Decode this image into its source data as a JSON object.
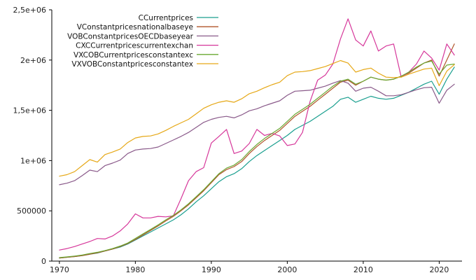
{
  "chart_data": {
    "type": "line",
    "title": "",
    "xlabel": "",
    "ylabel": "",
    "xlim": [
      1969,
      2023
    ],
    "ylim": [
      0,
      2500000
    ],
    "x_ticks": [
      1970,
      1980,
      1990,
      2000,
      2010,
      2020
    ],
    "x_tick_labels": [
      "1970",
      "1980",
      "1990",
      "2000",
      "2010",
      "2020"
    ],
    "y_ticks": [
      0,
      500000,
      1000000,
      1500000,
      2000000,
      2500000
    ],
    "y_tick_labels": [
      "0",
      "500000",
      "1e+06",
      "1,5e+06",
      "2e+06",
      "2,5e+06"
    ],
    "grid": false,
    "legend_position": "top-right",
    "x": [
      1970,
      1971,
      1972,
      1973,
      1974,
      1975,
      1976,
      1977,
      1978,
      1979,
      1980,
      1981,
      1982,
      1983,
      1984,
      1985,
      1986,
      1987,
      1988,
      1989,
      1990,
      1991,
      1992,
      1993,
      1994,
      1995,
      1996,
      1997,
      1998,
      1999,
      2000,
      2001,
      2002,
      2003,
      2004,
      2005,
      2006,
      2007,
      2008,
      2009,
      2010,
      2011,
      2012,
      2013,
      2014,
      2015,
      2016,
      2017,
      2018,
      2019,
      2020,
      2021,
      2022
    ],
    "series": [
      {
        "name": "CCurrentprices",
        "color": "#1a9f8f",
        "values": [
          30000,
          38000,
          45000,
          55000,
          68000,
          80000,
          100000,
          120000,
          140000,
          170000,
          210000,
          250000,
          290000,
          330000,
          370000,
          410000,
          460000,
          520000,
          590000,
          650000,
          720000,
          790000,
          840000,
          870000,
          920000,
          990000,
          1050000,
          1100000,
          1150000,
          1200000,
          1250000,
          1310000,
          1350000,
          1390000,
          1440000,
          1490000,
          1540000,
          1610000,
          1630000,
          1580000,
          1610000,
          1640000,
          1620000,
          1610000,
          1620000,
          1650000,
          1680000,
          1720000,
          1760000,
          1790000,
          1660000,
          1810000,
          1930000
        ]
      },
      {
        "name": "VConstantpricesnationalbaseye",
        "color": "#b0552a",
        "values": [
          30000,
          38000,
          45000,
          55000,
          68000,
          82000,
          100000,
          120000,
          145000,
          175000,
          215000,
          260000,
          305000,
          350000,
          400000,
          445000,
          500000,
          560000,
          630000,
          700000,
          780000,
          860000,
          910000,
          940000,
          990000,
          1070000,
          1140000,
          1200000,
          1250000,
          1300000,
          1370000,
          1440000,
          1490000,
          1540000,
          1600000,
          1660000,
          1720000,
          1780000,
          1800000,
          1750000,
          1790000,
          1830000,
          1810000,
          1800000,
          1810000,
          1840000,
          1870000,
          1920000,
          1970000,
          2000000,
          1840000,
          2000000,
          2160000
        ]
      },
      {
        "name": "VOBConstantpricesOECDbaseyear",
        "color": "#8a5a8a",
        "values": [
          760000,
          775000,
          800000,
          850000,
          905000,
          890000,
          950000,
          975000,
          1005000,
          1070000,
          1105000,
          1115000,
          1120000,
          1135000,
          1170000,
          1205000,
          1240000,
          1280000,
          1330000,
          1380000,
          1410000,
          1430000,
          1440000,
          1425000,
          1455000,
          1495000,
          1515000,
          1545000,
          1570000,
          1595000,
          1650000,
          1690000,
          1695000,
          1700000,
          1720000,
          1740000,
          1770000,
          1795000,
          1770000,
          1690000,
          1720000,
          1730000,
          1690000,
          1645000,
          1645000,
          1655000,
          1680000,
          1705000,
          1725000,
          1730000,
          1570000,
          1700000,
          1760000
        ]
      },
      {
        "name": "CXCCurrentpricescurrentexchan",
        "color": "#d6379a",
        "values": [
          110000,
          125000,
          145000,
          170000,
          195000,
          225000,
          220000,
          250000,
          300000,
          370000,
          470000,
          430000,
          430000,
          445000,
          440000,
          450000,
          620000,
          800000,
          890000,
          930000,
          1175000,
          1240000,
          1310000,
          1070000,
          1095000,
          1170000,
          1310000,
          1250000,
          1270000,
          1245000,
          1150000,
          1165000,
          1280000,
          1590000,
          1800000,
          1850000,
          1960000,
          2210000,
          2410000,
          2200000,
          2140000,
          2290000,
          2090000,
          2140000,
          2160000,
          1830000,
          1880000,
          1960000,
          2090000,
          2020000,
          1900000,
          2160000,
          2050000
        ]
      },
      {
        "name": "VXCOBCurrentpricesconstantexc",
        "color": "#6aa832",
        "values": [
          35000,
          42000,
          50000,
          60000,
          75000,
          88000,
          105000,
          125000,
          150000,
          180000,
          225000,
          270000,
          315000,
          360000,
          410000,
          455000,
          510000,
          570000,
          640000,
          710000,
          790000,
          870000,
          925000,
          955000,
          1010000,
          1090000,
          1160000,
          1220000,
          1270000,
          1320000,
          1390000,
          1460000,
          1510000,
          1560000,
          1620000,
          1680000,
          1740000,
          1790000,
          1810000,
          1760000,
          1790000,
          1830000,
          1810000,
          1800000,
          1810000,
          1840000,
          1880000,
          1930000,
          1970000,
          1990000,
          1860000,
          1950000,
          1960000
        ]
      },
      {
        "name": "VXVOBConstantpricesconstantex",
        "color": "#e6a817",
        "values": [
          845000,
          860000,
          890000,
          950000,
          1010000,
          985000,
          1060000,
          1085000,
          1115000,
          1180000,
          1225000,
          1240000,
          1245000,
          1265000,
          1300000,
          1340000,
          1375000,
          1410000,
          1465000,
          1520000,
          1555000,
          1580000,
          1595000,
          1580000,
          1615000,
          1665000,
          1690000,
          1725000,
          1755000,
          1780000,
          1845000,
          1880000,
          1885000,
          1895000,
          1915000,
          1935000,
          1965000,
          1995000,
          1970000,
          1880000,
          1905000,
          1920000,
          1870000,
          1830000,
          1825000,
          1830000,
          1860000,
          1885000,
          1910000,
          1920000,
          1745000,
          1890000,
          1955000
        ]
      }
    ]
  }
}
